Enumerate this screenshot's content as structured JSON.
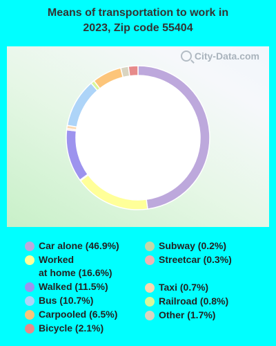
{
  "chart_data": {
    "type": "pie",
    "style": "donut",
    "title_line1": "Means of transportation to work in",
    "title_line2": "2023, Zip code 55404",
    "slices": [
      {
        "label": "Car alone",
        "value": 46.9,
        "legend": "Car alone (46.9%)",
        "color": "#bda8dc"
      },
      {
        "label": "Worked at home",
        "value": 16.6,
        "legend_line1": "Worked",
        "legend_line2": "at home (16.6%)",
        "color": "#ffff99"
      },
      {
        "label": "Subway",
        "value": 0.2,
        "legend": "Subway (0.2%)",
        "color": "#c4d8a8"
      },
      {
        "label": "Walked",
        "value": 11.5,
        "legend": "Walked (11.5%)",
        "color": "#9d93ee"
      },
      {
        "label": "Streetcar",
        "value": 0.3,
        "legend": "Streetcar (0.3%)",
        "color": "#f0b4b4"
      },
      {
        "label": "Taxi",
        "value": 0.7,
        "legend": "Taxi (0.7%)",
        "color": "#fbd8b0"
      },
      {
        "label": "Bus",
        "value": 10.7,
        "legend": "Bus (10.7%)",
        "color": "#add4f8"
      },
      {
        "label": "Railroad",
        "value": 0.8,
        "legend": "Railroad (0.8%)",
        "color": "#d8f79a"
      },
      {
        "label": "Carpooled",
        "value": 6.5,
        "legend": "Carpooled (6.5%)",
        "color": "#fcc57a"
      },
      {
        "label": "Other",
        "value": 1.7,
        "legend": "Other (1.7%)",
        "color": "#d9d4c0"
      },
      {
        "label": "Bicycle",
        "value": 2.1,
        "legend": "Bicycle (2.1%)",
        "color": "#e68a8a"
      }
    ]
  },
  "watermark": "City-Data.com"
}
